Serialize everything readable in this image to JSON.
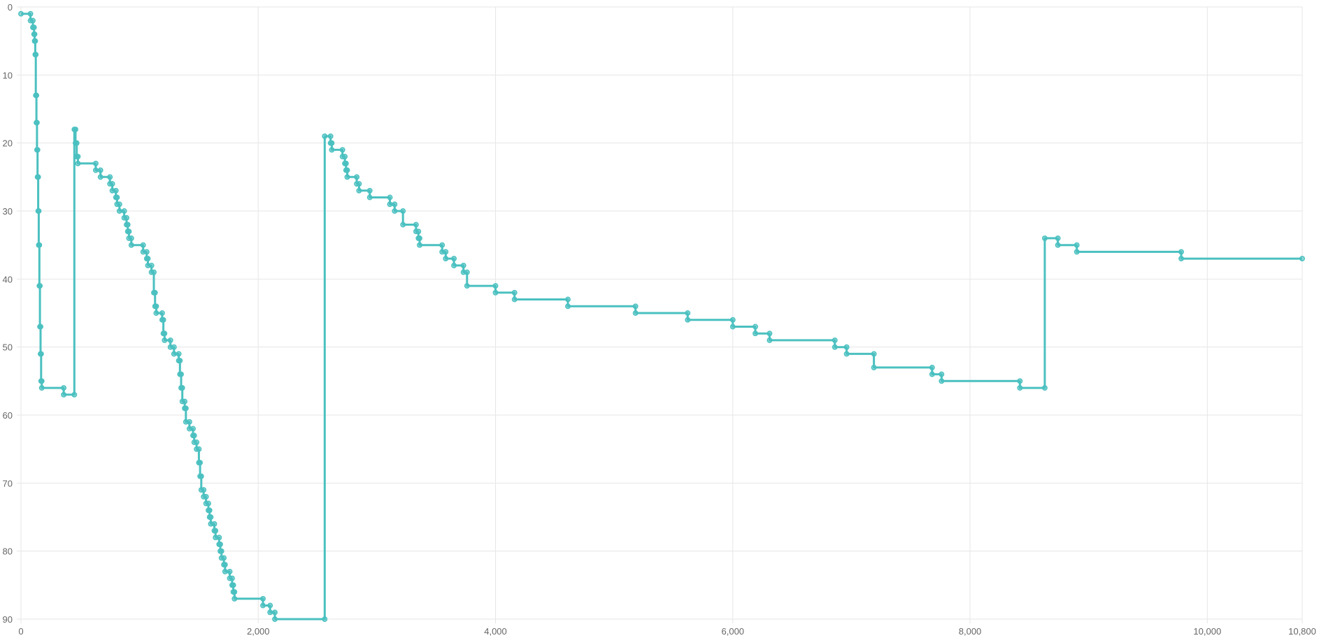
{
  "chart_data": {
    "type": "line",
    "step": true,
    "title": "",
    "xlabel": "",
    "ylabel": "",
    "xlim": [
      0,
      10800
    ],
    "ylim": [
      0,
      90
    ],
    "y_reversed": true,
    "grid": true,
    "legend": "none",
    "x_ticks": [
      {
        "value": 0,
        "label": "0"
      },
      {
        "value": 2000,
        "label": "2,000"
      },
      {
        "value": 4000,
        "label": "4,000"
      },
      {
        "value": 6000,
        "label": "6,000"
      },
      {
        "value": 8000,
        "label": "8,000"
      },
      {
        "value": 10000,
        "label": "10,000"
      },
      {
        "value": 10800,
        "label": "10,800"
      }
    ],
    "y_ticks": [
      {
        "value": 0,
        "label": "0"
      },
      {
        "value": 10,
        "label": "10"
      },
      {
        "value": 20,
        "label": "20"
      },
      {
        "value": 30,
        "label": "30"
      },
      {
        "value": 40,
        "label": "40"
      },
      {
        "value": 50,
        "label": "50"
      },
      {
        "value": 60,
        "label": "60"
      },
      {
        "value": 70,
        "label": "70"
      },
      {
        "value": 80,
        "label": "80"
      },
      {
        "value": 90,
        "label": "90"
      }
    ],
    "series": [
      {
        "color": "#4bc0c0",
        "points": [
          [
            0,
            1
          ],
          [
            80,
            1
          ],
          [
            80,
            2
          ],
          [
            100,
            2
          ],
          [
            100,
            3
          ],
          [
            110,
            3
          ],
          [
            110,
            4
          ],
          [
            115,
            4
          ],
          [
            115,
            5
          ],
          [
            120,
            5
          ],
          [
            120,
            7
          ],
          [
            125,
            7
          ],
          [
            125,
            13
          ],
          [
            130,
            13
          ],
          [
            130,
            17
          ],
          [
            135,
            17
          ],
          [
            135,
            21
          ],
          [
            140,
            21
          ],
          [
            140,
            25
          ],
          [
            145,
            25
          ],
          [
            145,
            30
          ],
          [
            150,
            30
          ],
          [
            150,
            35
          ],
          [
            155,
            35
          ],
          [
            155,
            41
          ],
          [
            160,
            41
          ],
          [
            160,
            47
          ],
          [
            165,
            47
          ],
          [
            165,
            51
          ],
          [
            170,
            51
          ],
          [
            170,
            55
          ],
          [
            175,
            55
          ],
          [
            175,
            56
          ],
          [
            360,
            56
          ],
          [
            360,
            57
          ],
          [
            450,
            57
          ],
          [
            450,
            18
          ],
          [
            460,
            18
          ],
          [
            460,
            20
          ],
          [
            470,
            20
          ],
          [
            470,
            22
          ],
          [
            480,
            22
          ],
          [
            480,
            23
          ],
          [
            630,
            23
          ],
          [
            630,
            24
          ],
          [
            670,
            24
          ],
          [
            670,
            25
          ],
          [
            750,
            25
          ],
          [
            750,
            26
          ],
          [
            770,
            26
          ],
          [
            770,
            27
          ],
          [
            800,
            27
          ],
          [
            800,
            28
          ],
          [
            810,
            28
          ],
          [
            810,
            29
          ],
          [
            830,
            29
          ],
          [
            830,
            30
          ],
          [
            870,
            30
          ],
          [
            870,
            31
          ],
          [
            890,
            31
          ],
          [
            890,
            32
          ],
          [
            900,
            32
          ],
          [
            900,
            33
          ],
          [
            910,
            33
          ],
          [
            910,
            34
          ],
          [
            930,
            34
          ],
          [
            930,
            35
          ],
          [
            1030,
            35
          ],
          [
            1030,
            36
          ],
          [
            1060,
            36
          ],
          [
            1060,
            37
          ],
          [
            1070,
            37
          ],
          [
            1070,
            38
          ],
          [
            1100,
            38
          ],
          [
            1100,
            39
          ],
          [
            1120,
            39
          ],
          [
            1120,
            42
          ],
          [
            1130,
            42
          ],
          [
            1130,
            44
          ],
          [
            1140,
            44
          ],
          [
            1140,
            45
          ],
          [
            1190,
            45
          ],
          [
            1190,
            46
          ],
          [
            1200,
            46
          ],
          [
            1200,
            48
          ],
          [
            1210,
            48
          ],
          [
            1210,
            49
          ],
          [
            1260,
            49
          ],
          [
            1260,
            50
          ],
          [
            1290,
            50
          ],
          [
            1290,
            51
          ],
          [
            1330,
            51
          ],
          [
            1330,
            52
          ],
          [
            1340,
            52
          ],
          [
            1340,
            54
          ],
          [
            1350,
            54
          ],
          [
            1350,
            56
          ],
          [
            1360,
            56
          ],
          [
            1360,
            58
          ],
          [
            1380,
            58
          ],
          [
            1380,
            59
          ],
          [
            1390,
            59
          ],
          [
            1390,
            61
          ],
          [
            1420,
            61
          ],
          [
            1420,
            62
          ],
          [
            1450,
            62
          ],
          [
            1450,
            63
          ],
          [
            1460,
            63
          ],
          [
            1460,
            64
          ],
          [
            1480,
            64
          ],
          [
            1480,
            65
          ],
          [
            1500,
            65
          ],
          [
            1500,
            67
          ],
          [
            1510,
            67
          ],
          [
            1510,
            69
          ],
          [
            1520,
            69
          ],
          [
            1520,
            71
          ],
          [
            1540,
            71
          ],
          [
            1540,
            72
          ],
          [
            1560,
            72
          ],
          [
            1560,
            73
          ],
          [
            1580,
            73
          ],
          [
            1580,
            74
          ],
          [
            1590,
            74
          ],
          [
            1590,
            75
          ],
          [
            1600,
            75
          ],
          [
            1600,
            76
          ],
          [
            1630,
            76
          ],
          [
            1630,
            77
          ],
          [
            1640,
            77
          ],
          [
            1640,
            78
          ],
          [
            1670,
            78
          ],
          [
            1670,
            79
          ],
          [
            1680,
            79
          ],
          [
            1680,
            80
          ],
          [
            1690,
            80
          ],
          [
            1690,
            81
          ],
          [
            1710,
            81
          ],
          [
            1710,
            82
          ],
          [
            1720,
            82
          ],
          [
            1720,
            83
          ],
          [
            1760,
            83
          ],
          [
            1760,
            84
          ],
          [
            1780,
            84
          ],
          [
            1780,
            85
          ],
          [
            1790,
            85
          ],
          [
            1790,
            86
          ],
          [
            1800,
            86
          ],
          [
            1800,
            87
          ],
          [
            2040,
            87
          ],
          [
            2040,
            88
          ],
          [
            2100,
            88
          ],
          [
            2100,
            89
          ],
          [
            2140,
            89
          ],
          [
            2140,
            90
          ],
          [
            2560,
            90
          ],
          [
            2560,
            19
          ],
          [
            2610,
            19
          ],
          [
            2610,
            20
          ],
          [
            2620,
            20
          ],
          [
            2620,
            21
          ],
          [
            2710,
            21
          ],
          [
            2710,
            22
          ],
          [
            2730,
            22
          ],
          [
            2730,
            23
          ],
          [
            2740,
            23
          ],
          [
            2740,
            24
          ],
          [
            2750,
            24
          ],
          [
            2750,
            25
          ],
          [
            2830,
            25
          ],
          [
            2830,
            26
          ],
          [
            2850,
            26
          ],
          [
            2850,
            27
          ],
          [
            2940,
            27
          ],
          [
            2940,
            28
          ],
          [
            3110,
            28
          ],
          [
            3110,
            29
          ],
          [
            3150,
            29
          ],
          [
            3150,
            30
          ],
          [
            3220,
            30
          ],
          [
            3220,
            32
          ],
          [
            3330,
            32
          ],
          [
            3330,
            33
          ],
          [
            3350,
            33
          ],
          [
            3350,
            34
          ],
          [
            3360,
            34
          ],
          [
            3360,
            35
          ],
          [
            3550,
            35
          ],
          [
            3550,
            36
          ],
          [
            3580,
            36
          ],
          [
            3580,
            37
          ],
          [
            3650,
            37
          ],
          [
            3650,
            38
          ],
          [
            3730,
            38
          ],
          [
            3730,
            39
          ],
          [
            3760,
            39
          ],
          [
            3760,
            41
          ],
          [
            4000,
            41
          ],
          [
            4000,
            42
          ],
          [
            4160,
            42
          ],
          [
            4160,
            43
          ],
          [
            4610,
            43
          ],
          [
            4610,
            44
          ],
          [
            5180,
            44
          ],
          [
            5180,
            45
          ],
          [
            5620,
            45
          ],
          [
            5620,
            46
          ],
          [
            6000,
            46
          ],
          [
            6000,
            47
          ],
          [
            6190,
            47
          ],
          [
            6190,
            48
          ],
          [
            6310,
            48
          ],
          [
            6310,
            49
          ],
          [
            6860,
            49
          ],
          [
            6860,
            50
          ],
          [
            6960,
            50
          ],
          [
            6960,
            51
          ],
          [
            7190,
            51
          ],
          [
            7190,
            53
          ],
          [
            7680,
            53
          ],
          [
            7680,
            54
          ],
          [
            7760,
            54
          ],
          [
            7760,
            55
          ],
          [
            8420,
            55
          ],
          [
            8420,
            56
          ],
          [
            8630,
            56
          ],
          [
            8630,
            34
          ],
          [
            8740,
            34
          ],
          [
            8740,
            35
          ],
          [
            8900,
            35
          ],
          [
            8900,
            36
          ],
          [
            9780,
            36
          ],
          [
            9780,
            37
          ],
          [
            10800,
            37
          ]
        ]
      }
    ]
  }
}
